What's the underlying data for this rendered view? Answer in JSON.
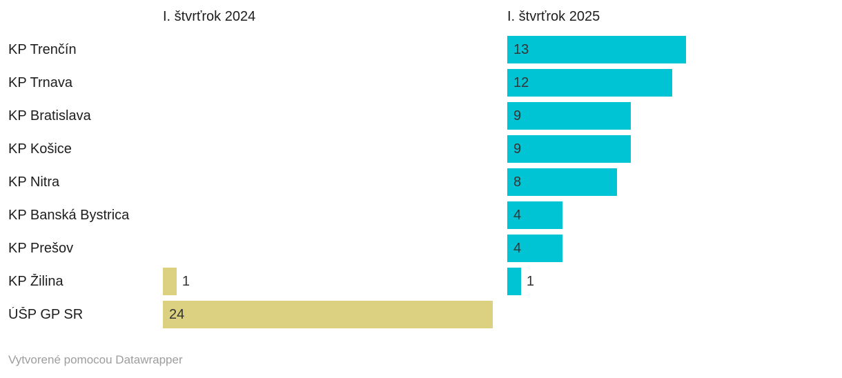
{
  "chart_data": {
    "type": "bar",
    "title": "",
    "orientation": "horizontal",
    "grid": false,
    "value_labels": true,
    "xmax": 24,
    "categories": [
      "KP Trenčín",
      "KP Trnava",
      "KP Bratislava",
      "KP Košice",
      "KP Nitra",
      "KP Banská Bystrica",
      "KP Prešov",
      "KP Žilina",
      "ÚŠP GP SR"
    ],
    "series": [
      {
        "name": "I. štvrťrok 2024",
        "color": "#dbd180",
        "values": [
          0,
          0,
          0,
          0,
          0,
          0,
          0,
          1,
          24
        ]
      },
      {
        "name": "I. štvrťrok 2025",
        "color": "#00c4d4",
        "values": [
          13,
          12,
          9,
          9,
          8,
          4,
          4,
          1,
          0
        ]
      }
    ]
  },
  "footer": {
    "attribution": "Vytvorené pomocou Datawrapper"
  },
  "colors": {
    "bar_2024": "#dbd180",
    "bar_2025": "#00c4d4",
    "category_label": "#1d1d1d",
    "value_label": "#333333",
    "footer_text": "#9d9d9d",
    "background": "#ffffff"
  }
}
